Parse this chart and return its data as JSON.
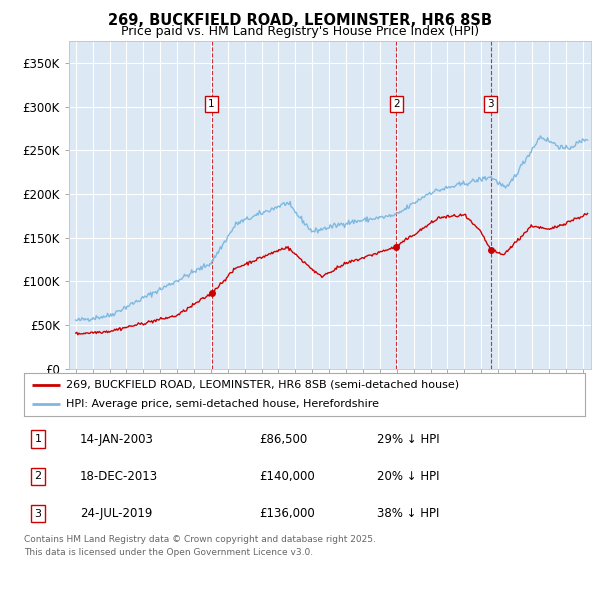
{
  "title": "269, BUCKFIELD ROAD, LEOMINSTER, HR6 8SB",
  "subtitle": "Price paid vs. HM Land Registry's House Price Index (HPI)",
  "background_color": "#ffffff",
  "plot_bg_color": "#dce9f5",
  "hpi_color": "#7fb8e0",
  "price_color": "#cc0000",
  "ylim": [
    0,
    375000
  ],
  "yticks": [
    0,
    50000,
    100000,
    150000,
    200000,
    250000,
    300000,
    350000
  ],
  "ytick_labels": [
    "£0",
    "£50K",
    "£100K",
    "£150K",
    "£200K",
    "£250K",
    "£300K",
    "£350K"
  ],
  "xlim_start": 1994.6,
  "xlim_end": 2025.5,
  "sale_dates": [
    2003.04,
    2013.97,
    2019.56
  ],
  "sale_prices": [
    86500,
    140000,
    136000
  ],
  "sale_labels": [
    "1",
    "2",
    "3"
  ],
  "sale_date_strs": [
    "14-JAN-2003",
    "18-DEC-2013",
    "24-JUL-2019"
  ],
  "sale_price_strs": [
    "£86,500",
    "£140,000",
    "£136,000"
  ],
  "sale_hpi_strs": [
    "29% ↓ HPI",
    "20% ↓ HPI",
    "38% ↓ HPI"
  ],
  "legend_line1": "269, BUCKFIELD ROAD, LEOMINSTER, HR6 8SB (semi-detached house)",
  "legend_line2": "HPI: Average price, semi-detached house, Herefordshire",
  "footer1": "Contains HM Land Registry data © Crown copyright and database right 2025.",
  "footer2": "This data is licensed under the Open Government Licence v3.0."
}
